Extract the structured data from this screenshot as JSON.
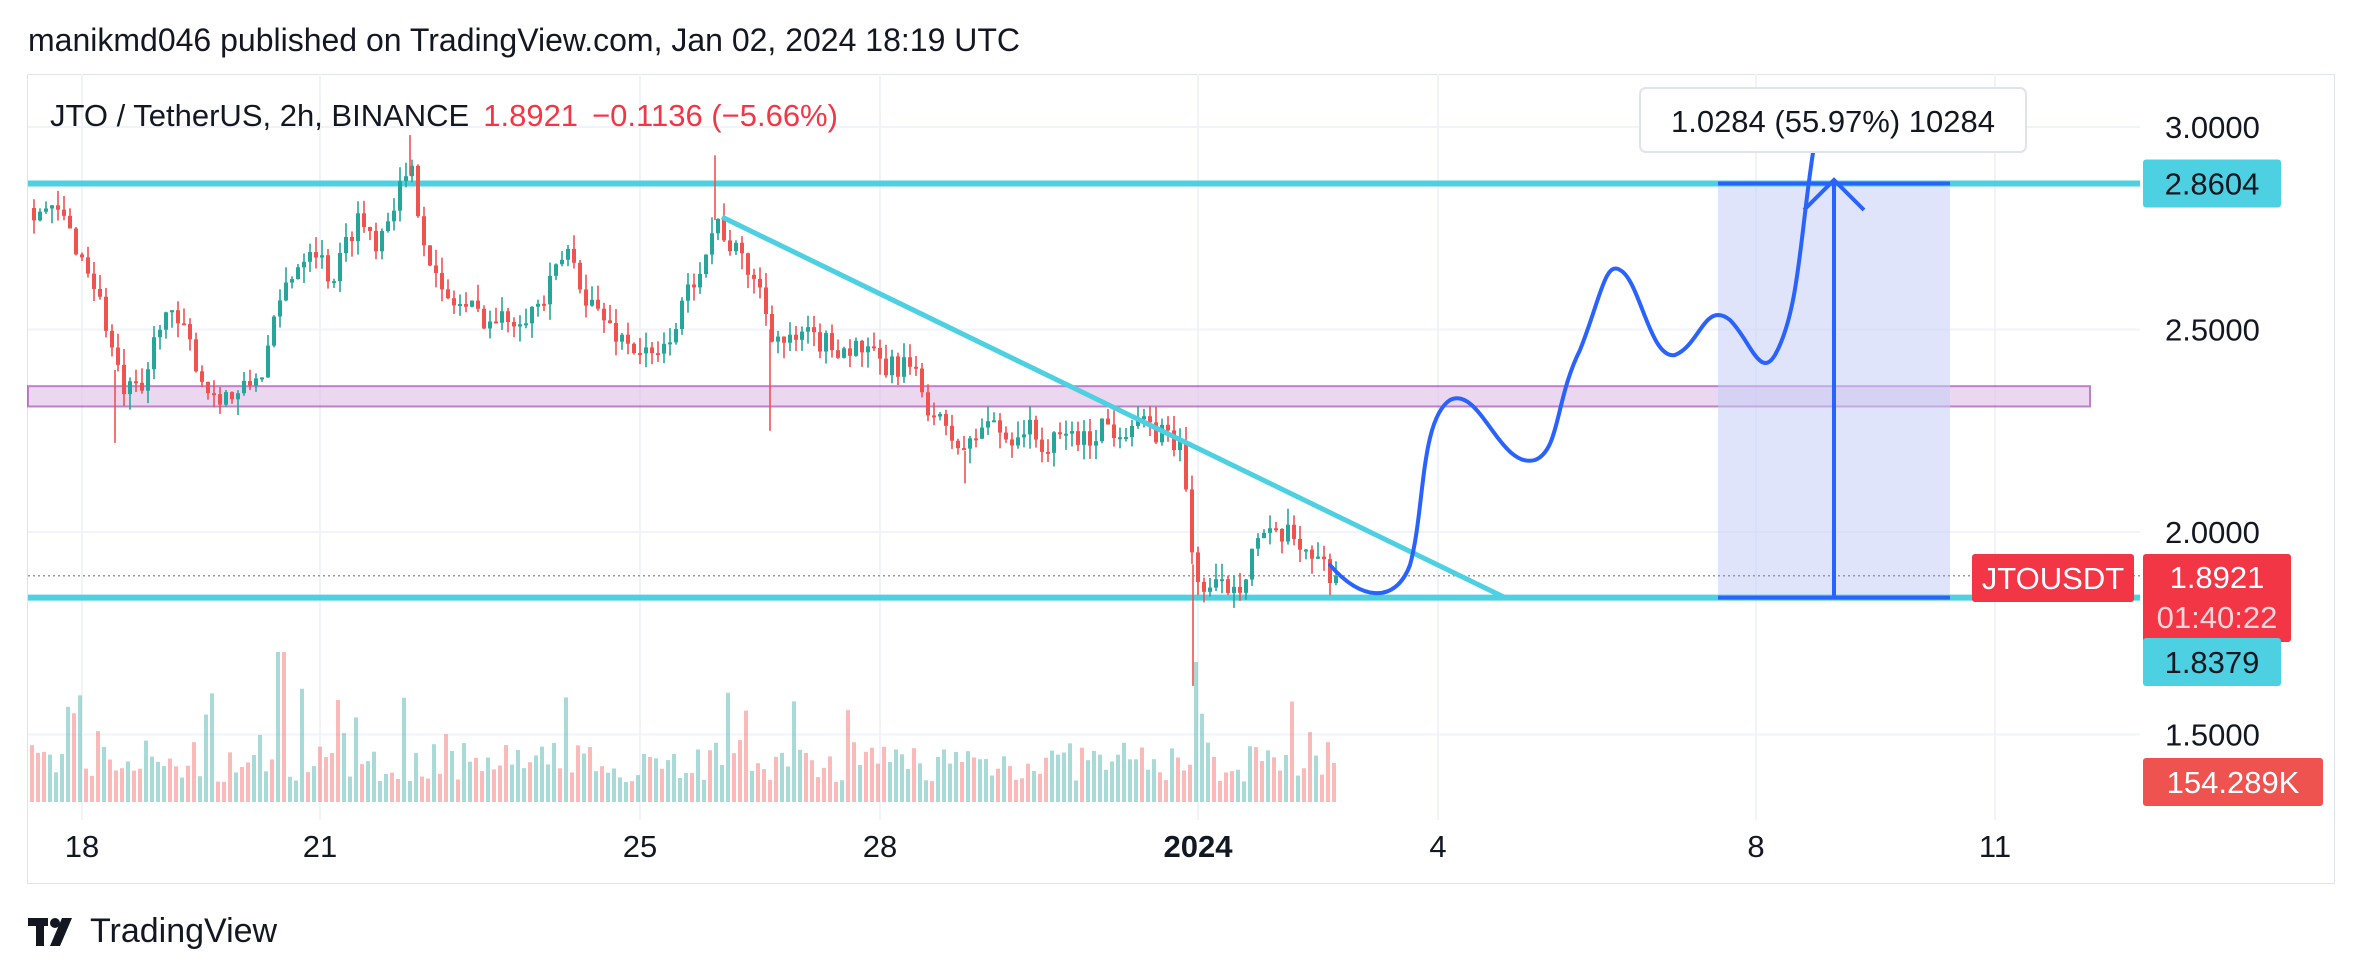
{
  "header": {
    "publisher_line": "manikmd046 published on TradingView.com, Jan 02, 2024 18:19 UTC"
  },
  "symbol": {
    "name": "JTO / TetherUS, 2h, BINANCE",
    "price": "1.8921",
    "change": "−0.1136 (−5.66%)"
  },
  "footer": {
    "brand": "TradingView"
  },
  "colors": {
    "up": "#26a69a",
    "down": "#ef5350",
    "level_line": "#4dd0e1",
    "zone_fill": "#e1bee7",
    "zone_stroke": "#9c27b0",
    "projection": "#2962ff",
    "target_box": "#c5cdf7",
    "price_tag": "#f23645"
  },
  "chart_data": {
    "type": "candlestick",
    "symbol": "JTOUSDT",
    "ylim": [
      1.42,
      3.12
    ],
    "x_ticks": [
      "18",
      "21",
      "25",
      "28",
      "2024",
      "4",
      "8",
      "11"
    ],
    "y_ticks": [
      "3.0000",
      "2.5000",
      "2.0000",
      "1.5000"
    ],
    "levels": [
      2.8604,
      1.8379
    ],
    "zone": [
      2.36,
      2.31
    ],
    "trendline": [
      [
        2.75,
        "Dec 26"
      ],
      [
        1.84,
        "Jan 05"
      ]
    ],
    "axis_tags": {
      "resistance": "2.8604",
      "support": "1.8379",
      "symbol_tag": "JTOUSDT",
      "last_price": "1.8921",
      "countdown": "01:40:22",
      "volume": "154.289K"
    },
    "measure_label": "1.0284 (55.97%) 10284",
    "grid": true
  }
}
